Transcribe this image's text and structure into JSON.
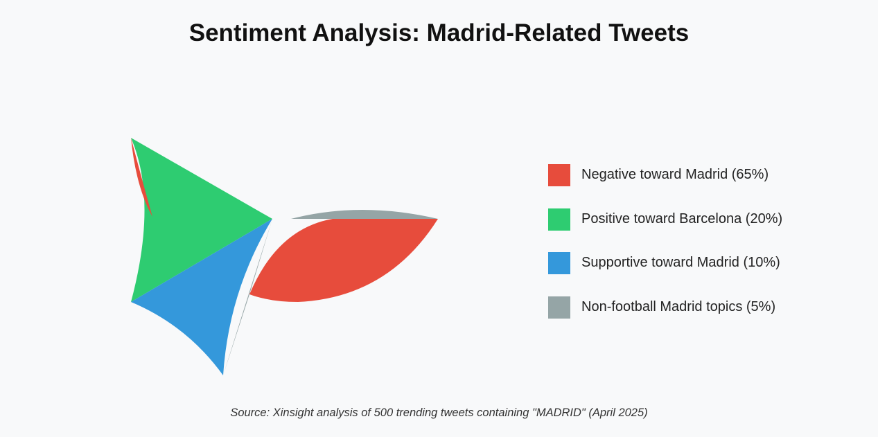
{
  "chart_data": {
    "type": "pie",
    "title": "Sentiment Analysis: Madrid-Related Tweets",
    "categories": [
      "Negative toward Madrid (65%)",
      "Positive toward Barcelona (20%)",
      "Supportive toward Madrid (10%)",
      "Non-football Madrid topics (5%)"
    ],
    "values": [
      65,
      20,
      10,
      5
    ],
    "colors": [
      "#e74c3c",
      "#2ecc71",
      "#3498db",
      "#95a5a6"
    ],
    "legend_position": "right",
    "source": "Source: Xinsight analysis of 500 trending tweets containing \"MADRID\" (April 2025)"
  }
}
